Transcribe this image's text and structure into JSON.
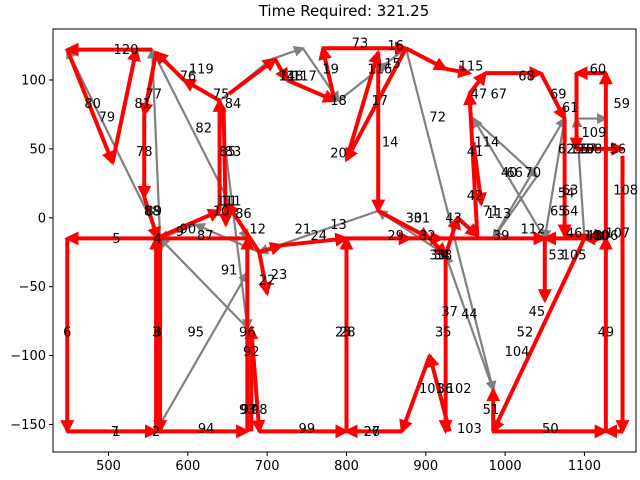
{
  "chart_data": {
    "type": "network",
    "title": "Time Required: 321.25",
    "xlim": [
      430,
      1165
    ],
    "ylim": [
      -170,
      137
    ],
    "x_ticks": [
      500,
      600,
      700,
      800,
      900,
      1000,
      1100
    ],
    "y_ticks": [
      -150,
      -100,
      -50,
      0,
      50,
      100
    ],
    "colors": {
      "route": "#ff0000",
      "network": "#808080"
    },
    "nodes": [
      {
        "id": "1",
        "x": 510,
        "y": -155
      },
      {
        "id": "2",
        "x": 560,
        "y": -155
      },
      {
        "id": "3",
        "x": 560,
        "y": -83
      },
      {
        "id": "4",
        "x": 562,
        "y": -15
      },
      {
        "id": "5",
        "x": 510,
        "y": -15
      },
      {
        "id": "6",
        "x": 448,
        "y": -83
      },
      {
        "id": "7",
        "x": 508,
        "y": -155
      },
      {
        "id": "8",
        "x": 562,
        "y": -83
      },
      {
        "id": "9",
        "x": 590,
        "y": -10
      },
      {
        "id": "10",
        "x": 642,
        "y": 5
      },
      {
        "id": "11",
        "x": 652,
        "y": 12
      },
      {
        "id": "12",
        "x": 688,
        "y": -8
      },
      {
        "id": "13",
        "x": 790,
        "y": -5
      },
      {
        "id": "14",
        "x": 855,
        "y": 55
      },
      {
        "id": "15",
        "x": 858,
        "y": 112
      },
      {
        "id": "16",
        "x": 862,
        "y": 125
      },
      {
        "id": "17",
        "x": 842,
        "y": 85
      },
      {
        "id": "18",
        "x": 790,
        "y": 85
      },
      {
        "id": "19",
        "x": 780,
        "y": 108
      },
      {
        "id": "20",
        "x": 790,
        "y": 47
      },
      {
        "id": "21",
        "x": 745,
        "y": -8
      },
      {
        "id": "22",
        "x": 700,
        "y": -45
      },
      {
        "id": "23",
        "x": 715,
        "y": -41
      },
      {
        "id": "24",
        "x": 765,
        "y": -13
      },
      {
        "id": "25",
        "x": 796,
        "y": -83
      },
      {
        "id": "26",
        "x": 832,
        "y": -155
      },
      {
        "id": "27",
        "x": 832,
        "y": -155
      },
      {
        "id": "28",
        "x": 801,
        "y": -83
      },
      {
        "id": "29",
        "x": 862,
        "y": -13
      },
      {
        "id": "30",
        "x": 885,
        "y": 0
      },
      {
        "id": "31",
        "x": 895,
        "y": 0
      },
      {
        "id": "32",
        "x": 902,
        "y": -13
      },
      {
        "id": "33",
        "x": 915,
        "y": -27
      },
      {
        "id": "34",
        "x": 920,
        "y": -27
      },
      {
        "id": "35",
        "x": 922,
        "y": -83
      },
      {
        "id": "36",
        "x": 924,
        "y": -124
      },
      {
        "id": "37",
        "x": 930,
        "y": -68
      },
      {
        "id": "38",
        "x": 923,
        "y": -27
      },
      {
        "id": "39",
        "x": 995,
        "y": -13
      },
      {
        "id": "40",
        "x": 1005,
        "y": 33
      },
      {
        "id": "41",
        "x": 962,
        "y": 48
      },
      {
        "id": "42",
        "x": 962,
        "y": 16
      },
      {
        "id": "43",
        "x": 935,
        "y": 0
      },
      {
        "id": "44",
        "x": 955,
        "y": -70
      },
      {
        "id": "45",
        "x": 1040,
        "y": -68
      },
      {
        "id": "46",
        "x": 1087,
        "y": -11
      },
      {
        "id": "47",
        "x": 967,
        "y": 90
      },
      {
        "id": "48",
        "x": 1112,
        "y": -13
      },
      {
        "id": "49",
        "x": 1127,
        "y": -83
      },
      {
        "id": "50",
        "x": 1057,
        "y": -153
      },
      {
        "id": "51",
        "x": 982,
        "y": -139
      },
      {
        "id": "52",
        "x": 1025,
        "y": -83
      },
      {
        "id": "53",
        "x": 1065,
        "y": -27
      },
      {
        "id": "54",
        "x": 1077,
        "y": 18
      },
      {
        "id": "55",
        "x": 1097,
        "y": 50
      },
      {
        "id": "56",
        "x": 1142,
        "y": 50
      },
      {
        "id": "57",
        "x": 1105,
        "y": 50
      },
      {
        "id": "58",
        "x": 1112,
        "y": 50
      },
      {
        "id": "59",
        "x": 1147,
        "y": 83
      },
      {
        "id": "60",
        "x": 1117,
        "y": 108
      },
      {
        "id": "61",
        "x": 1082,
        "y": 80
      },
      {
        "id": "62",
        "x": 1077,
        "y": 50
      },
      {
        "id": "63",
        "x": 1082,
        "y": 20
      },
      {
        "id": "64",
        "x": 1082,
        "y": 5
      },
      {
        "id": "65",
        "x": 1067,
        "y": 5
      },
      {
        "id": "66",
        "x": 1012,
        "y": 33
      },
      {
        "id": "67",
        "x": 992,
        "y": 90
      },
      {
        "id": "68",
        "x": 1027,
        "y": 103
      },
      {
        "id": "69",
        "x": 1067,
        "y": 90
      },
      {
        "id": "70",
        "x": 1035,
        "y": 33
      },
      {
        "id": "71",
        "x": 982,
        "y": 5
      },
      {
        "id": "72",
        "x": 915,
        "y": 73
      },
      {
        "id": "73",
        "x": 817,
        "y": 127
      },
      {
        "id": "74",
        "x": 725,
        "y": 103
      },
      {
        "id": "75",
        "x": 642,
        "y": 90
      },
      {
        "id": "76",
        "x": 600,
        "y": 103
      },
      {
        "id": "77",
        "x": 557,
        "y": 90
      },
      {
        "id": "78",
        "x": 545,
        "y": 48
      },
      {
        "id": "79",
        "x": 498,
        "y": 73
      },
      {
        "id": "80",
        "x": 480,
        "y": 83
      },
      {
        "id": "81",
        "x": 543,
        "y": 83
      },
      {
        "id": "82",
        "x": 620,
        "y": 65
      },
      {
        "id": "83",
        "x": 657,
        "y": 48
      },
      {
        "id": "84",
        "x": 657,
        "y": 83
      },
      {
        "id": "85",
        "x": 650,
        "y": 48
      },
      {
        "id": "86",
        "x": 670,
        "y": 3
      },
      {
        "id": "87",
        "x": 622,
        "y": -13
      },
      {
        "id": "88",
        "x": 555,
        "y": 5
      },
      {
        "id": "89",
        "x": 557,
        "y": 5
      },
      {
        "id": "90",
        "x": 600,
        "y": -8
      },
      {
        "id": "91",
        "x": 652,
        "y": -38
      },
      {
        "id": "92",
        "x": 680,
        "y": -97
      },
      {
        "id": "93",
        "x": 675,
        "y": -139
      },
      {
        "id": "94",
        "x": 623,
        "y": -153
      },
      {
        "id": "95",
        "x": 610,
        "y": -83
      },
      {
        "id": "96",
        "x": 675,
        "y": -83
      },
      {
        "id": "97",
        "x": 677,
        "y": -139
      },
      {
        "id": "98",
        "x": 690,
        "y": -139
      },
      {
        "id": "99",
        "x": 750,
        "y": -153
      },
      {
        "id": "100",
        "x": 1115,
        "y": -13
      },
      {
        "id": "101",
        "x": 907,
        "y": -124
      },
      {
        "id": "102",
        "x": 942,
        "y": -124
      },
      {
        "id": "103",
        "x": 955,
        "y": -153
      },
      {
        "id": "104",
        "x": 1015,
        "y": -97
      },
      {
        "id": "105",
        "x": 1087,
        "y": -27
      },
      {
        "id": "106",
        "x": 1127,
        "y": -13
      },
      {
        "id": "107",
        "x": 1142,
        "y": -11
      },
      {
        "id": "108",
        "x": 1152,
        "y": 20
      },
      {
        "id": "109",
        "x": 1112,
        "y": 62
      },
      {
        "id": "110",
        "x": 1097,
        "y": 50
      },
      {
        "id": "111",
        "x": 652,
        "y": 12
      },
      {
        "id": "112",
        "x": 1035,
        "y": -8
      },
      {
        "id": "113",
        "x": 992,
        "y": 3
      },
      {
        "id": "114",
        "x": 977,
        "y": 55
      },
      {
        "id": "115",
        "x": 957,
        "y": 110
      },
      {
        "id": "116",
        "x": 842,
        "y": 108
      },
      {
        "id": "117",
        "x": 747,
        "y": 103
      },
      {
        "id": "118",
        "x": 730,
        "y": 103
      },
      {
        "id": "119",
        "x": 617,
        "y": 108
      },
      {
        "id": "120",
        "x": 522,
        "y": 122
      }
    ],
    "route_edges": [
      [
        [
          448,
          -15
        ],
        [
          448,
          -155
        ]
      ],
      [
        [
          448,
          -155
        ],
        [
          560,
          -155
        ]
      ],
      [
        [
          560,
          -155
        ],
        [
          560,
          -15
        ]
      ],
      [
        [
          565,
          -15
        ],
        [
          565,
          -155
        ]
      ],
      [
        [
          560,
          -155
        ],
        [
          675,
          -155
        ]
      ],
      [
        [
          675,
          -155
        ],
        [
          675,
          -15
        ]
      ],
      [
        [
          675,
          -15
        ],
        [
          448,
          -15
        ]
      ],
      [
        [
          560,
          -15
        ],
        [
          640,
          5
        ]
      ],
      [
        [
          640,
          5
        ],
        [
          640,
          85
        ]
      ],
      [
        [
          640,
          85
        ],
        [
          595,
          100
        ]
      ],
      [
        [
          595,
          100
        ],
        [
          560,
          120
        ]
      ],
      [
        [
          560,
          120
        ],
        [
          545,
          75
        ]
      ],
      [
        [
          545,
          75
        ],
        [
          545,
          15
        ]
      ],
      [
        [
          545,
          15
        ],
        [
          562,
          -15
        ]
      ],
      [
        [
          555,
          122
        ],
        [
          448,
          122
        ]
      ],
      [
        [
          448,
          122
        ],
        [
          505,
          40
        ]
      ],
      [
        [
          505,
          40
        ],
        [
          535,
          122
        ]
      ],
      [
        [
          652,
          90
        ],
        [
          710,
          115
        ]
      ],
      [
        [
          710,
          115
        ],
        [
          725,
          100
        ]
      ],
      [
        [
          725,
          100
        ],
        [
          785,
          85
        ]
      ],
      [
        [
          785,
          85
        ],
        [
          770,
          123
        ]
      ],
      [
        [
          770,
          123
        ],
        [
          875,
          123
        ]
      ],
      [
        [
          875,
          123
        ],
        [
          800,
          42
        ]
      ],
      [
        [
          800,
          42
        ],
        [
          840,
          120
        ]
      ],
      [
        [
          840,
          120
        ],
        [
          840,
          5
        ]
      ],
      [
        [
          840,
          5
        ],
        [
          905,
          -15
        ]
      ],
      [
        [
          905,
          -15
        ],
        [
          925,
          -27
        ]
      ],
      [
        [
          925,
          -27
        ],
        [
          940,
          0
        ]
      ],
      [
        [
          940,
          0
        ],
        [
          965,
          -13
        ]
      ],
      [
        [
          965,
          -13
        ],
        [
          955,
          90
        ]
      ],
      [
        [
          955,
          90
        ],
        [
          975,
          105
        ]
      ],
      [
        [
          975,
          105
        ],
        [
          1045,
          105
        ]
      ],
      [
        [
          1045,
          105
        ],
        [
          1075,
          72
        ]
      ],
      [
        [
          1075,
          72
        ],
        [
          1075,
          -13
        ]
      ],
      [
        [
          1075,
          -13
        ],
        [
          1127,
          -13
        ]
      ],
      [
        [
          1127,
          -13
        ],
        [
          1127,
          105
        ]
      ],
      [
        [
          1127,
          105
        ],
        [
          1090,
          105
        ]
      ],
      [
        [
          1090,
          105
        ],
        [
          1090,
          50
        ]
      ],
      [
        [
          1090,
          50
        ],
        [
          1148,
          50
        ]
      ],
      [
        [
          1148,
          45
        ],
        [
          1148,
          -155
        ]
      ],
      [
        [
          1148,
          -155
        ],
        [
          1127,
          -155
        ]
      ],
      [
        [
          1127,
          -155
        ],
        [
          1127,
          -15
        ]
      ],
      [
        [
          1127,
          -15
        ],
        [
          1100,
          -15
        ]
      ],
      [
        [
          1100,
          -15
        ],
        [
          985,
          -155
        ]
      ],
      [
        [
          985,
          -155
        ],
        [
          985,
          -125
        ]
      ],
      [
        [
          985,
          -155
        ],
        [
          1127,
          -155
        ]
      ],
      [
        [
          925,
          -27
        ],
        [
          925,
          -155
        ]
      ],
      [
        [
          930,
          -155
        ],
        [
          905,
          -100
        ]
      ],
      [
        [
          905,
          -100
        ],
        [
          870,
          -155
        ]
      ],
      [
        [
          870,
          -155
        ],
        [
          800,
          -155
        ]
      ],
      [
        [
          800,
          -155
        ],
        [
          800,
          -15
        ]
      ],
      [
        [
          800,
          -15
        ],
        [
          880,
          -15
        ]
      ],
      [
        [
          680,
          -155
        ],
        [
          680,
          -80
        ]
      ],
      [
        [
          680,
          -80
        ],
        [
          690,
          -155
        ]
      ],
      [
        [
          690,
          -155
        ],
        [
          800,
          -155
        ]
      ],
      [
        [
          690,
          -25
        ],
        [
          718,
          -20
        ]
      ],
      [
        [
          718,
          -20
        ],
        [
          800,
          -15
        ]
      ],
      [
        [
          690,
          -25
        ],
        [
          700,
          -55
        ]
      ],
      [
        [
          690,
          -25
        ],
        [
          650,
          10
        ]
      ],
      [
        [
          645,
          80
        ],
        [
          648,
          -5
        ]
      ],
      [
        [
          1100,
          -15
        ],
        [
          1050,
          -15
        ]
      ],
      [
        [
          1050,
          -15
        ],
        [
          1050,
          -60
        ]
      ],
      [
        [
          960,
          55
        ],
        [
          970,
          10
        ]
      ],
      [
        [
          880,
          -15
        ],
        [
          920,
          -15
        ]
      ],
      [
        [
          920,
          -15
        ],
        [
          1050,
          -15
        ]
      ],
      [
        [
          875,
          123
        ],
        [
          925,
          108
        ]
      ],
      [
        [
          925,
          108
        ],
        [
          955,
          105
        ]
      ]
    ],
    "network_edges": [
      [
        [
          448,
          -155
        ],
        [
          560,
          -155
        ]
      ],
      [
        [
          560,
          -155
        ],
        [
          675,
          -40
        ]
      ],
      [
        [
          675,
          -40
        ],
        [
          675,
          -80
        ]
      ],
      [
        [
          675,
          -80
        ],
        [
          565,
          -15
        ]
      ],
      [
        [
          565,
          -15
        ],
        [
          448,
          122
        ]
      ],
      [
        [
          565,
          -15
        ],
        [
          555,
          122
        ]
      ],
      [
        [
          555,
          122
        ],
        [
          675,
          -15
        ]
      ],
      [
        [
          675,
          -80
        ],
        [
          640,
          85
        ]
      ],
      [
        [
          640,
          85
        ],
        [
          705,
          115
        ]
      ],
      [
        [
          705,
          115
        ],
        [
          745,
          123
        ]
      ],
      [
        [
          745,
          123
        ],
        [
          790,
          85
        ]
      ],
      [
        [
          790,
          85
        ],
        [
          850,
          112
        ]
      ],
      [
        [
          850,
          112
        ],
        [
          875,
          123
        ]
      ],
      [
        [
          875,
          123
        ],
        [
          985,
          -125
        ]
      ],
      [
        [
          985,
          -125
        ],
        [
          925,
          -27
        ]
      ],
      [
        [
          925,
          -27
        ],
        [
          840,
          5
        ]
      ],
      [
        [
          840,
          5
        ],
        [
          690,
          -25
        ]
      ],
      [
        [
          690,
          -25
        ],
        [
          610,
          -5
        ]
      ],
      [
        [
          610,
          -5
        ],
        [
          565,
          -15
        ]
      ],
      [
        [
          985,
          -15
        ],
        [
          1075,
          72
        ]
      ],
      [
        [
          1075,
          72
        ],
        [
          1050,
          -15
        ]
      ],
      [
        [
          1050,
          -15
        ],
        [
          960,
          72
        ]
      ],
      [
        [
          960,
          72
        ],
        [
          1040,
          30
        ]
      ],
      [
        [
          1040,
          30
        ],
        [
          985,
          -15
        ]
      ],
      [
        [
          1100,
          -15
        ],
        [
          1090,
          72
        ]
      ],
      [
        [
          1090,
          72
        ],
        [
          1127,
          72
        ]
      ]
    ]
  }
}
